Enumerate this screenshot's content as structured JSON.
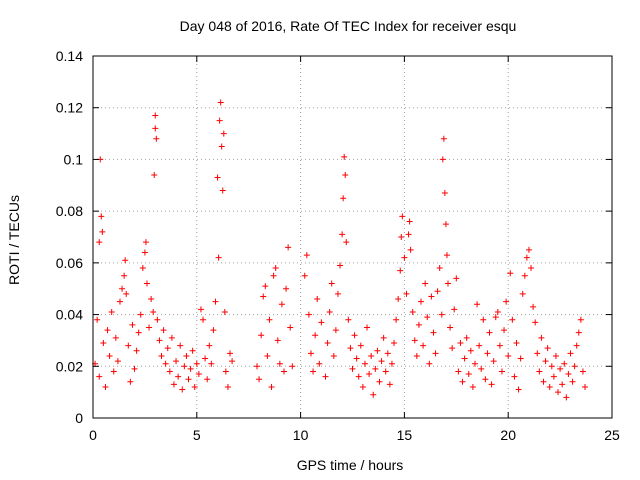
{
  "chart_data": {
    "type": "scatter",
    "title": "Day 048 of 2016, Rate Of TEC Index for receiver esqu",
    "xlabel": "GPS time / hours",
    "ylabel": "ROTI / TECUs",
    "xlim": [
      0,
      25
    ],
    "ylim": [
      0,
      0.14
    ],
    "x_ticks": [
      0,
      5,
      10,
      15,
      20,
      25
    ],
    "x_tick_labels": [
      "0",
      "5",
      "10",
      "15",
      "20",
      "25"
    ],
    "y_ticks": [
      0,
      0.02,
      0.04,
      0.06,
      0.08,
      0.1,
      0.12,
      0.14
    ],
    "y_tick_labels": [
      "0",
      "0.02",
      "0.04",
      "0.06",
      "0.08",
      "0.1",
      "0.12",
      "0.14"
    ],
    "grid": true,
    "marker": "+",
    "series_color": "#ff0000",
    "series": [
      {
        "name": "ROTI",
        "points": [
          [
            0.1,
            0.021
          ],
          [
            0.2,
            0.038
          ],
          [
            0.3,
            0.016
          ],
          [
            0.3,
            0.068
          ],
          [
            0.35,
            0.1
          ],
          [
            0.4,
            0.078
          ],
          [
            0.45,
            0.072
          ],
          [
            0.5,
            0.029
          ],
          [
            0.6,
            0.012
          ],
          [
            0.7,
            0.034
          ],
          [
            0.8,
            0.024
          ],
          [
            0.9,
            0.041
          ],
          [
            1.0,
            0.018
          ],
          [
            1.1,
            0.031
          ],
          [
            1.2,
            0.022
          ],
          [
            1.3,
            0.045
          ],
          [
            1.4,
            0.05
          ],
          [
            1.5,
            0.055
          ],
          [
            1.55,
            0.061
          ],
          [
            1.6,
            0.048
          ],
          [
            1.7,
            0.028
          ],
          [
            1.8,
            0.014
          ],
          [
            1.9,
            0.036
          ],
          [
            2.0,
            0.019
          ],
          [
            2.1,
            0.026
          ],
          [
            2.2,
            0.033
          ],
          [
            2.3,
            0.04
          ],
          [
            2.4,
            0.058
          ],
          [
            2.5,
            0.064
          ],
          [
            2.55,
            0.068
          ],
          [
            2.6,
            0.052
          ],
          [
            2.7,
            0.035
          ],
          [
            2.8,
            0.046
          ],
          [
            2.9,
            0.041
          ],
          [
            2.95,
            0.094
          ],
          [
            3.0,
            0.112
          ],
          [
            3.0,
            0.117
          ],
          [
            3.05,
            0.108
          ],
          [
            3.1,
            0.038
          ],
          [
            3.2,
            0.03
          ],
          [
            3.3,
            0.024
          ],
          [
            3.4,
            0.034
          ],
          [
            3.5,
            0.021
          ],
          [
            3.6,
            0.027
          ],
          [
            3.7,
            0.018
          ],
          [
            3.8,
            0.031
          ],
          [
            3.9,
            0.013
          ],
          [
            4.0,
            0.022
          ],
          [
            4.1,
            0.016
          ],
          [
            4.2,
            0.028
          ],
          [
            4.3,
            0.011
          ],
          [
            4.4,
            0.02
          ],
          [
            4.5,
            0.024
          ],
          [
            4.6,
            0.015
          ],
          [
            4.7,
            0.019
          ],
          [
            4.8,
            0.026
          ],
          [
            4.9,
            0.012
          ],
          [
            5.0,
            0.021
          ],
          [
            5.1,
            0.017
          ],
          [
            5.2,
            0.042
          ],
          [
            5.3,
            0.038
          ],
          [
            5.4,
            0.023
          ],
          [
            5.5,
            0.015
          ],
          [
            5.6,
            0.028
          ],
          [
            5.7,
            0.021
          ],
          [
            5.8,
            0.034
          ],
          [
            5.9,
            0.045
          ],
          [
            6.0,
            0.093
          ],
          [
            6.05,
            0.062
          ],
          [
            6.1,
            0.115
          ],
          [
            6.15,
            0.122
          ],
          [
            6.2,
            0.105
          ],
          [
            6.25,
            0.088
          ],
          [
            6.3,
            0.11
          ],
          [
            6.35,
            0.041
          ],
          [
            6.4,
            0.018
          ],
          [
            6.5,
            0.012
          ],
          [
            6.6,
            0.025
          ],
          [
            6.7,
            0.022
          ],
          [
            7.9,
            0.02
          ],
          [
            8.0,
            0.015
          ],
          [
            8.1,
            0.032
          ],
          [
            8.2,
            0.047
          ],
          [
            8.3,
            0.051
          ],
          [
            8.4,
            0.024
          ],
          [
            8.5,
            0.038
          ],
          [
            8.6,
            0.012
          ],
          [
            8.7,
            0.055
          ],
          [
            8.8,
            0.058
          ],
          [
            8.9,
            0.03
          ],
          [
            9.0,
            0.021
          ],
          [
            9.1,
            0.044
          ],
          [
            9.2,
            0.018
          ],
          [
            9.3,
            0.05
          ],
          [
            9.4,
            0.066
          ],
          [
            9.5,
            0.035
          ],
          [
            9.6,
            0.02
          ],
          [
            10.2,
            0.055
          ],
          [
            10.3,
            0.063
          ],
          [
            10.4,
            0.04
          ],
          [
            10.5,
            0.025
          ],
          [
            10.6,
            0.018
          ],
          [
            10.7,
            0.032
          ],
          [
            10.8,
            0.046
          ],
          [
            10.9,
            0.021
          ],
          [
            11.0,
            0.037
          ],
          [
            11.2,
            0.016
          ],
          [
            11.3,
            0.029
          ],
          [
            11.4,
            0.041
          ],
          [
            11.5,
            0.052
          ],
          [
            11.6,
            0.024
          ],
          [
            11.7,
            0.034
          ],
          [
            11.8,
            0.048
          ],
          [
            11.9,
            0.059
          ],
          [
            12.0,
            0.071
          ],
          [
            12.05,
            0.085
          ],
          [
            12.1,
            0.101
          ],
          [
            12.15,
            0.094
          ],
          [
            12.2,
            0.068
          ],
          [
            12.3,
            0.038
          ],
          [
            12.4,
            0.027
          ],
          [
            12.5,
            0.019
          ],
          [
            12.6,
            0.032
          ],
          [
            12.7,
            0.023
          ],
          [
            12.8,
            0.016
          ],
          [
            12.9,
            0.028
          ],
          [
            13.0,
            0.012
          ],
          [
            13.1,
            0.021
          ],
          [
            13.2,
            0.035
          ],
          [
            13.3,
            0.017
          ],
          [
            13.4,
            0.024
          ],
          [
            13.5,
            0.009
          ],
          [
            13.6,
            0.019
          ],
          [
            13.7,
            0.026
          ],
          [
            13.8,
            0.014
          ],
          [
            13.9,
            0.022
          ],
          [
            14.0,
            0.031
          ],
          [
            14.1,
            0.018
          ],
          [
            14.2,
            0.025
          ],
          [
            14.3,
            0.013
          ],
          [
            14.4,
            0.021
          ],
          [
            14.5,
            0.029
          ],
          [
            14.6,
            0.038
          ],
          [
            14.7,
            0.046
          ],
          [
            14.8,
            0.057
          ],
          [
            14.85,
            0.07
          ],
          [
            14.9,
            0.078
          ],
          [
            15.0,
            0.062
          ],
          [
            15.1,
            0.048
          ],
          [
            15.2,
            0.071
          ],
          [
            15.25,
            0.076
          ],
          [
            15.3,
            0.065
          ],
          [
            15.4,
            0.041
          ],
          [
            15.5,
            0.03
          ],
          [
            15.6,
            0.024
          ],
          [
            15.7,
            0.036
          ],
          [
            15.8,
            0.045
          ],
          [
            15.9,
            0.028
          ],
          [
            16.0,
            0.052
          ],
          [
            16.1,
            0.039
          ],
          [
            16.2,
            0.021
          ],
          [
            16.3,
            0.047
          ],
          [
            16.4,
            0.033
          ],
          [
            16.5,
            0.025
          ],
          [
            16.6,
            0.049
          ],
          [
            16.7,
            0.058
          ],
          [
            16.8,
            0.04
          ],
          [
            16.85,
            0.1
          ],
          [
            16.9,
            0.108
          ],
          [
            16.95,
            0.087
          ],
          [
            17.0,
            0.075
          ],
          [
            17.05,
            0.063
          ],
          [
            17.1,
            0.052
          ],
          [
            17.2,
            0.035
          ],
          [
            17.3,
            0.027
          ],
          [
            17.4,
            0.042
          ],
          [
            17.5,
            0.054
          ],
          [
            17.6,
            0.018
          ],
          [
            17.7,
            0.029
          ],
          [
            17.8,
            0.014
          ],
          [
            17.9,
            0.023
          ],
          [
            18.0,
            0.031
          ],
          [
            18.1,
            0.017
          ],
          [
            18.2,
            0.026
          ],
          [
            18.3,
            0.012
          ],
          [
            18.4,
            0.021
          ],
          [
            18.5,
            0.044
          ],
          [
            18.6,
            0.028
          ],
          [
            18.7,
            0.019
          ],
          [
            18.8,
            0.038
          ],
          [
            18.9,
            0.015
          ],
          [
            19.0,
            0.025
          ],
          [
            19.1,
            0.033
          ],
          [
            19.2,
            0.013
          ],
          [
            19.3,
            0.022
          ],
          [
            19.4,
            0.039
          ],
          [
            19.5,
            0.041
          ],
          [
            19.6,
            0.028
          ],
          [
            19.7,
            0.018
          ],
          [
            19.8,
            0.034
          ],
          [
            19.9,
            0.045
          ],
          [
            20.0,
            0.024
          ],
          [
            20.1,
            0.056
          ],
          [
            20.2,
            0.038
          ],
          [
            20.3,
            0.016
          ],
          [
            20.4,
            0.029
          ],
          [
            20.5,
            0.011
          ],
          [
            20.6,
            0.023
          ],
          [
            20.7,
            0.048
          ],
          [
            20.8,
            0.055
          ],
          [
            20.9,
            0.062
          ],
          [
            21.0,
            0.065
          ],
          [
            21.1,
            0.058
          ],
          [
            21.2,
            0.043
          ],
          [
            21.3,
            0.037
          ],
          [
            21.4,
            0.025
          ],
          [
            21.5,
            0.018
          ],
          [
            21.6,
            0.031
          ],
          [
            21.7,
            0.014
          ],
          [
            21.8,
            0.022
          ],
          [
            21.9,
            0.027
          ],
          [
            22.0,
            0.012
          ],
          [
            22.1,
            0.02
          ],
          [
            22.2,
            0.016
          ],
          [
            22.3,
            0.024
          ],
          [
            22.4,
            0.01
          ],
          [
            22.5,
            0.019
          ],
          [
            22.6,
            0.013
          ],
          [
            22.7,
            0.021
          ],
          [
            22.8,
            0.008
          ],
          [
            22.9,
            0.017
          ],
          [
            23.0,
            0.025
          ],
          [
            23.1,
            0.014
          ],
          [
            23.2,
            0.02
          ],
          [
            23.3,
            0.028
          ],
          [
            23.4,
            0.033
          ],
          [
            23.5,
            0.038
          ],
          [
            23.6,
            0.018
          ],
          [
            23.7,
            0.012
          ]
        ]
      }
    ]
  }
}
